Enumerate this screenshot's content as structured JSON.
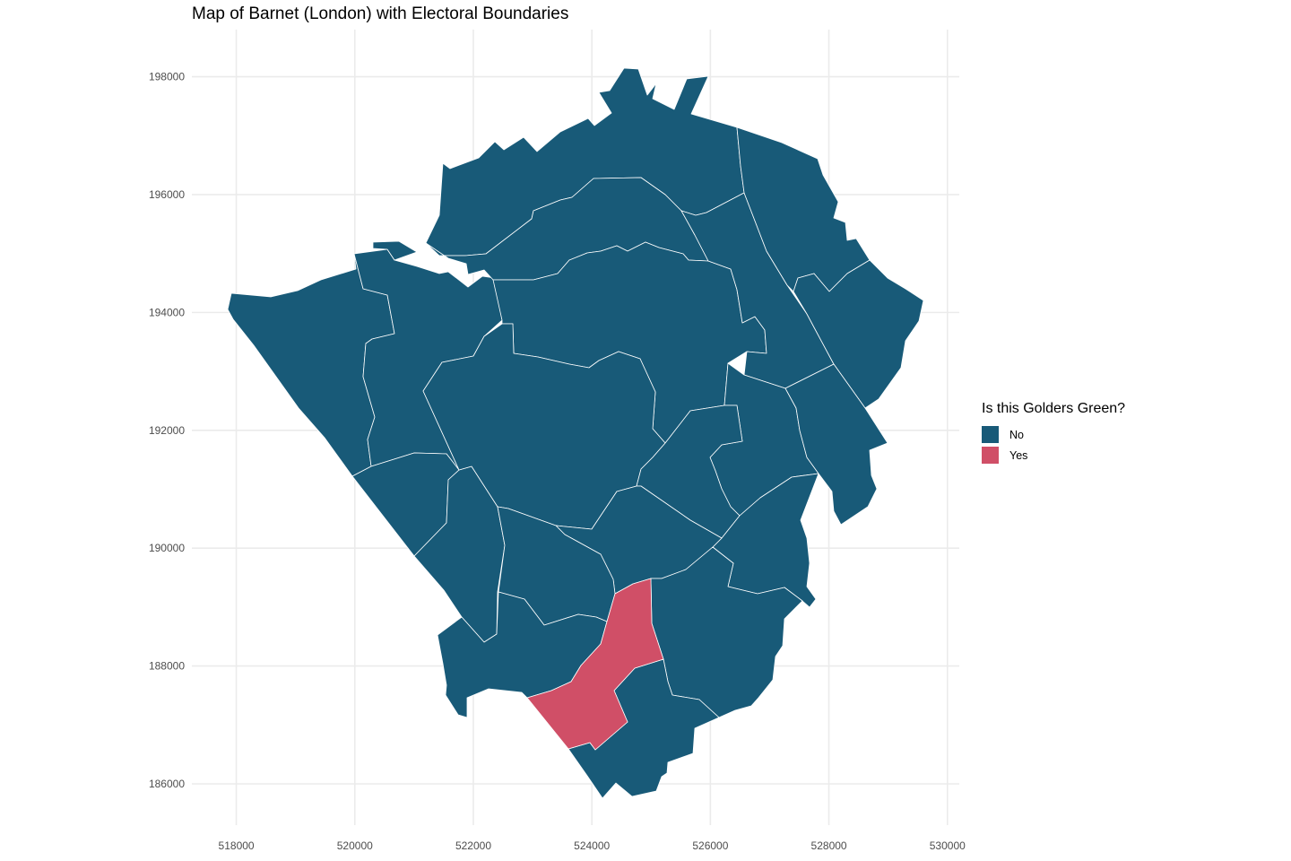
{
  "title": "Map of Barnet (London) with Electoral Boundaries",
  "legend": {
    "title": "Is this Golders Green?",
    "items": [
      {
        "label": "No",
        "color": "#185a78"
      },
      {
        "label": "Yes",
        "color": "#d04f67"
      }
    ]
  },
  "chart_data": {
    "type": "map",
    "title": "Map of Barnet (London) with Electoral Boundaries",
    "x_ticks": [
      "518000",
      "520000",
      "522000",
      "524000",
      "526000",
      "528000",
      "530000"
    ],
    "y_ticks": [
      "198000",
      "196000",
      "194000",
      "192000",
      "190000",
      "188000",
      "186000"
    ],
    "xlim": [
      517250,
      530200
    ],
    "ylim": [
      185300,
      198800
    ],
    "grid": true,
    "legend_position": "right",
    "fill_variable": "Is this Golders Green?",
    "categories": [
      "No",
      "Yes"
    ],
    "highlighted_ward": "Golders Green",
    "border_color": "#ffffff"
  }
}
